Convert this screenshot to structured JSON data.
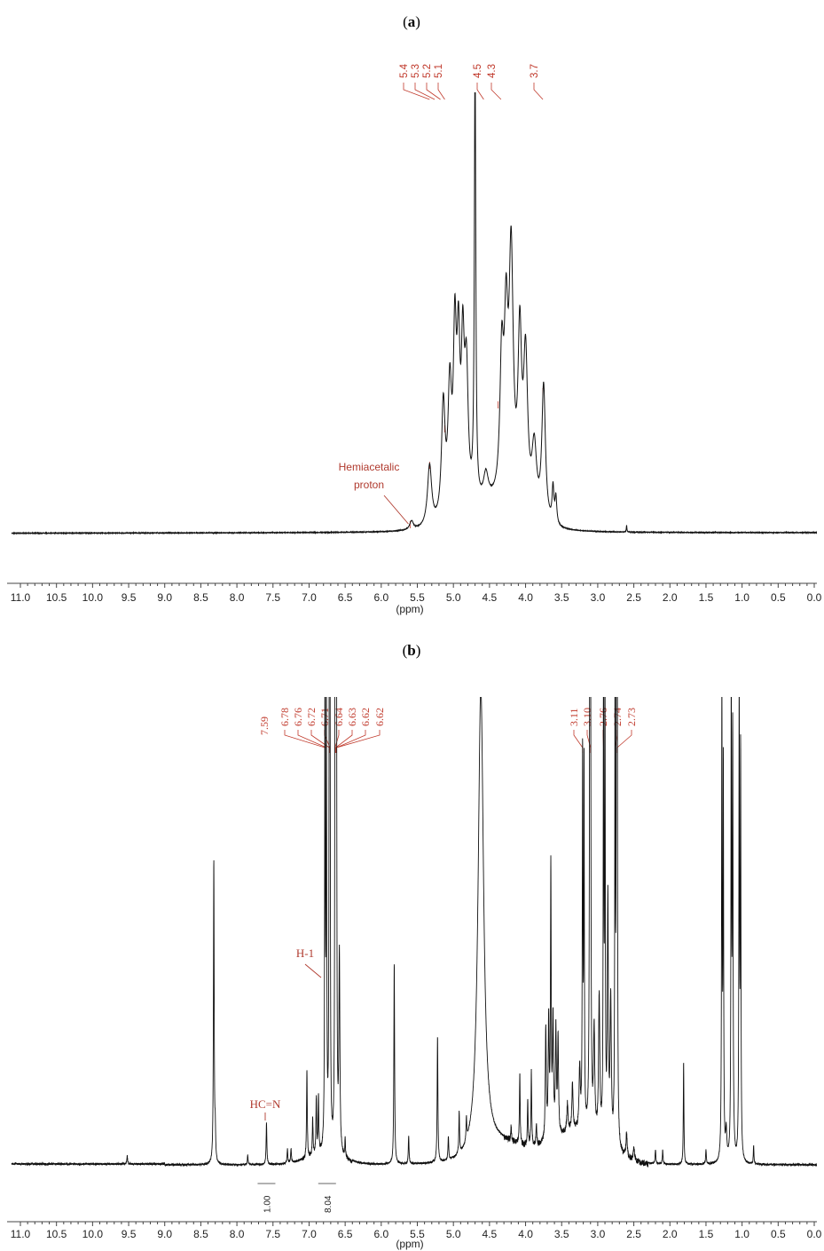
{
  "chart_data": [
    {
      "type": "line",
      "panel_label": "a",
      "xlabel": "(ppm)",
      "x_reversed": true,
      "xlim": [
        11.0,
        0.0
      ],
      "x_ticks": [
        "11.0",
        "10.5",
        "10.0",
        "9.5",
        "9.0",
        "8.5",
        "8.0",
        "7.5",
        "7.0",
        "6.5",
        "6.0",
        "5.5",
        "5.0",
        "4.5",
        "4.0",
        "3.5",
        "3.0",
        "2.5",
        "2.0",
        "1.5",
        "1.0",
        "0.5",
        "0.0"
      ],
      "peak_labels": [
        "5.4",
        "5.3",
        "5.2",
        "5.1",
        "4.5",
        "4.3",
        "3.7"
      ],
      "annotations": [
        {
          "text": [
            "Hemiacetalic",
            "proton"
          ],
          "x": 5.6
        }
      ],
      "ylim": [
        0,
        1.0
      ],
      "peaks": [
        {
          "x": 5.58,
          "h": 0.02,
          "w": 0.03
        },
        {
          "x": 5.33,
          "h": 0.14,
          "w": 0.035
        },
        {
          "x": 5.14,
          "h": 0.26,
          "w": 0.03
        },
        {
          "x": 5.05,
          "h": 0.28,
          "w": 0.03
        },
        {
          "x": 4.98,
          "h": 0.38,
          "w": 0.025
        },
        {
          "x": 4.93,
          "h": 0.34,
          "w": 0.025
        },
        {
          "x": 4.87,
          "h": 0.33,
          "w": 0.025
        },
        {
          "x": 4.82,
          "h": 0.3,
          "w": 0.03
        },
        {
          "x": 4.7,
          "h": 1.0,
          "w": 0.012
        },
        {
          "x": 4.55,
          "h": 0.06,
          "w": 0.04
        },
        {
          "x": 4.33,
          "h": 0.31,
          "w": 0.03
        },
        {
          "x": 4.27,
          "h": 0.36,
          "w": 0.03
        },
        {
          "x": 4.2,
          "h": 0.56,
          "w": 0.035
        },
        {
          "x": 4.08,
          "h": 0.38,
          "w": 0.03
        },
        {
          "x": 4.0,
          "h": 0.35,
          "w": 0.035
        },
        {
          "x": 3.88,
          "h": 0.16,
          "w": 0.04
        },
        {
          "x": 3.75,
          "h": 0.31,
          "w": 0.03
        },
        {
          "x": 3.62,
          "h": 0.08,
          "w": 0.015
        },
        {
          "x": 3.58,
          "h": 0.06,
          "w": 0.015
        },
        {
          "x": 2.6,
          "h": 0.015,
          "w": 0.005
        }
      ]
    },
    {
      "type": "line",
      "panel_label": "b",
      "xlabel": "(ppm)",
      "x_reversed": true,
      "xlim": [
        11.0,
        0.0
      ],
      "x_ticks": [
        "11.0",
        "10.5",
        "10.0",
        "9.5",
        "9.0",
        "8.5",
        "8.0",
        "7.5",
        "7.0",
        "6.5",
        "6.0",
        "5.5",
        "5.0",
        "4.5",
        "4.0",
        "3.5",
        "3.0",
        "2.5",
        "2.0",
        "1.5",
        "1.0",
        "0.5",
        "0.0"
      ],
      "peak_labels_left": [
        "7.59"
      ],
      "peak_labels_group1": [
        "6.78",
        "6.76",
        "6.72",
        "6.71",
        "6.64",
        "6.63",
        "6.62",
        "6.62"
      ],
      "peak_labels_group2": [
        "3.11",
        "3.10",
        "2.76",
        "2.74",
        "2.73"
      ],
      "annotations": [
        {
          "text": "H-1",
          "x": 6.9
        },
        {
          "text": "HC=N",
          "x": 7.59
        }
      ],
      "integrations": [
        {
          "x": 7.59,
          "value": "1.00"
        },
        {
          "x": 6.75,
          "value": "8.04"
        }
      ],
      "ylim": [
        0,
        1.0
      ],
      "peaks": [
        {
          "x": 9.52,
          "h": 0.018,
          "w": 0.006
        },
        {
          "x": 8.32,
          "h": 0.65,
          "w": 0.006
        },
        {
          "x": 8.3,
          "h": 0.06,
          "w": 0.006
        },
        {
          "x": 7.85,
          "h": 0.02,
          "w": 0.006
        },
        {
          "x": 7.59,
          "h": 0.09,
          "w": 0.006
        },
        {
          "x": 7.3,
          "h": 0.03,
          "w": 0.006
        },
        {
          "x": 7.25,
          "h": 0.03,
          "w": 0.006
        },
        {
          "x": 7.03,
          "h": 0.19,
          "w": 0.006
        },
        {
          "x": 6.95,
          "h": 0.08,
          "w": 0.006
        },
        {
          "x": 6.9,
          "h": 0.12,
          "w": 0.006
        },
        {
          "x": 6.87,
          "h": 0.12,
          "w": 0.006
        },
        {
          "x": 6.78,
          "h": 1.0,
          "w": 0.005
        },
        {
          "x": 6.76,
          "h": 1.0,
          "w": 0.005
        },
        {
          "x": 6.72,
          "h": 1.0,
          "w": 0.005
        },
        {
          "x": 6.71,
          "h": 1.0,
          "w": 0.005
        },
        {
          "x": 6.64,
          "h": 1.0,
          "w": 0.005
        },
        {
          "x": 6.63,
          "h": 1.0,
          "w": 0.005
        },
        {
          "x": 6.62,
          "h": 1.0,
          "w": 0.005
        },
        {
          "x": 6.58,
          "h": 0.42,
          "w": 0.008
        },
        {
          "x": 6.5,
          "h": 0.04,
          "w": 0.006
        },
        {
          "x": 5.82,
          "h": 0.43,
          "w": 0.006
        },
        {
          "x": 5.62,
          "h": 0.06,
          "w": 0.006
        },
        {
          "x": 5.22,
          "h": 0.27,
          "w": 0.006
        },
        {
          "x": 5.07,
          "h": 0.05,
          "w": 0.006
        },
        {
          "x": 4.92,
          "h": 0.09,
          "w": 0.006
        },
        {
          "x": 4.82,
          "h": 0.05,
          "w": 0.006
        },
        {
          "x": 4.62,
          "h": 1.0,
          "w": 0.045
        },
        {
          "x": 4.2,
          "h": 0.03,
          "w": 0.006
        },
        {
          "x": 4.08,
          "h": 0.15,
          "w": 0.006
        },
        {
          "x": 3.97,
          "h": 0.1,
          "w": 0.006
        },
        {
          "x": 3.92,
          "h": 0.16,
          "w": 0.006
        },
        {
          "x": 3.85,
          "h": 0.05,
          "w": 0.006
        },
        {
          "x": 3.72,
          "h": 0.24,
          "w": 0.008
        },
        {
          "x": 3.68,
          "h": 0.25,
          "w": 0.008
        },
        {
          "x": 3.65,
          "h": 0.57,
          "w": 0.006
        },
        {
          "x": 3.62,
          "h": 0.25,
          "w": 0.008
        },
        {
          "x": 3.58,
          "h": 0.22,
          "w": 0.008
        },
        {
          "x": 3.55,
          "h": 0.2,
          "w": 0.008
        },
        {
          "x": 3.42,
          "h": 0.06,
          "w": 0.01
        },
        {
          "x": 3.35,
          "h": 0.1,
          "w": 0.01
        },
        {
          "x": 3.25,
          "h": 0.13,
          "w": 0.01
        },
        {
          "x": 3.21,
          "h": 0.79,
          "w": 0.005
        },
        {
          "x": 3.19,
          "h": 0.77,
          "w": 0.005
        },
        {
          "x": 3.11,
          "h": 1.0,
          "w": 0.006
        },
        {
          "x": 3.1,
          "h": 1.0,
          "w": 0.006
        },
        {
          "x": 3.05,
          "h": 0.22,
          "w": 0.01
        },
        {
          "x": 2.98,
          "h": 0.3,
          "w": 0.01
        },
        {
          "x": 2.92,
          "h": 1.0,
          "w": 0.005
        },
        {
          "x": 2.9,
          "h": 1.0,
          "w": 0.005
        },
        {
          "x": 2.86,
          "h": 0.52,
          "w": 0.008
        },
        {
          "x": 2.82,
          "h": 0.3,
          "w": 0.01
        },
        {
          "x": 2.76,
          "h": 1.0,
          "w": 0.005
        },
        {
          "x": 2.74,
          "h": 1.0,
          "w": 0.005
        },
        {
          "x": 2.73,
          "h": 1.0,
          "w": 0.005
        },
        {
          "x": 2.6,
          "h": 0.05,
          "w": 0.01
        },
        {
          "x": 2.5,
          "h": 0.03,
          "w": 0.01
        },
        {
          "x": 2.2,
          "h": 0.03,
          "w": 0.006
        },
        {
          "x": 2.1,
          "h": 0.03,
          "w": 0.006
        },
        {
          "x": 1.81,
          "h": 0.22,
          "w": 0.005
        },
        {
          "x": 1.5,
          "h": 0.03,
          "w": 0.006
        },
        {
          "x": 1.28,
          "h": 1.0,
          "w": 0.005
        },
        {
          "x": 1.26,
          "h": 0.83,
          "w": 0.005
        },
        {
          "x": 1.22,
          "h": 0.06,
          "w": 0.01
        },
        {
          "x": 1.15,
          "h": 1.0,
          "w": 0.005
        },
        {
          "x": 1.13,
          "h": 0.9,
          "w": 0.006
        },
        {
          "x": 1.04,
          "h": 1.0,
          "w": 0.005
        },
        {
          "x": 1.02,
          "h": 0.86,
          "w": 0.005
        },
        {
          "x": 0.84,
          "h": 0.04,
          "w": 0.005
        }
      ]
    }
  ]
}
